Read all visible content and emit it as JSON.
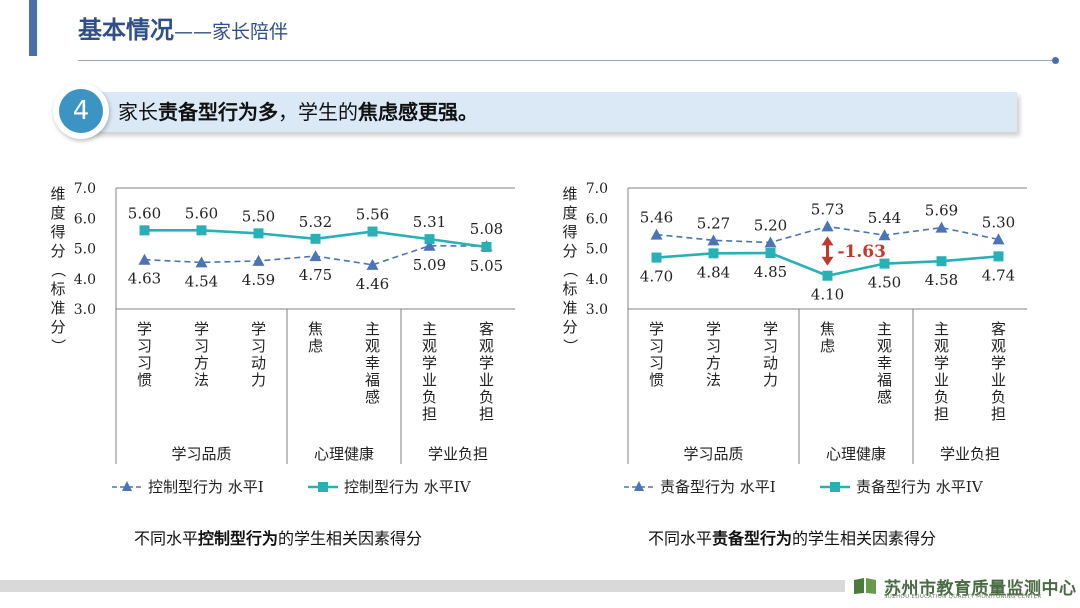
{
  "header": {
    "title": "基本情况",
    "subtitle": "——家长陪伴"
  },
  "banner": {
    "number": "4",
    "text_parts": [
      {
        "text": "家长",
        "bold": false
      },
      {
        "text": "责备型行为多",
        "bold": true
      },
      {
        "text": "，学生的",
        "bold": false
      },
      {
        "text": "焦虑感更强。",
        "bold": true
      }
    ]
  },
  "colors": {
    "series_level1": "#4a74b4",
    "series_level4": "#27b0b5",
    "gap_arrow": "#c0392b",
    "axis": "#808080",
    "title_blue": "#2f4f86"
  },
  "chart_data": [
    {
      "type": "line",
      "ylabel": "维度得分（标准分）",
      "ylim": [
        3.0,
        7.0
      ],
      "yticks": [
        "3.0",
        "4.0",
        "5.0",
        "6.0",
        "7.0"
      ],
      "categories": [
        "学习习惯",
        "学习方法",
        "学习动力",
        "焦虑",
        "主观幸福感",
        "主观学业负担",
        "客观学业负担"
      ],
      "groups": [
        {
          "label": "学习品质",
          "span": 3
        },
        {
          "label": "心理健康",
          "span": 2
        },
        {
          "label": "学业负担",
          "span": 2
        }
      ],
      "series": [
        {
          "name": "控制型行为 水平I",
          "values": [
            4.63,
            4.54,
            4.59,
            4.75,
            4.46,
            5.09,
            5.08
          ],
          "labels": [
            "4.63",
            "4.54",
            "4.59",
            "4.75",
            "4.46",
            "5.09",
            "5.08"
          ]
        },
        {
          "name": "控制型行为 水平IV",
          "values": [
            5.6,
            5.6,
            5.5,
            5.32,
            5.56,
            5.31,
            5.05
          ],
          "labels": [
            "5.60",
            "5.60",
            "5.50",
            "5.32",
            "5.56",
            "5.31",
            "5.05"
          ]
        }
      ],
      "legend": [
        "控制型行为 水平I",
        "控制型行为 水平IV"
      ],
      "caption_parts": [
        {
          "text": "不同水平",
          "bold": false
        },
        {
          "text": "控制型行为",
          "bold": true
        },
        {
          "text": "的学生相关因素得分",
          "bold": false
        }
      ]
    },
    {
      "type": "line",
      "ylabel": "维度得分（标准分）",
      "ylim": [
        3.0,
        7.0
      ],
      "yticks": [
        "3.0",
        "4.0",
        "5.0",
        "6.0",
        "7.0"
      ],
      "categories": [
        "学习习惯",
        "学习方法",
        "学习动力",
        "焦虑",
        "主观幸福感",
        "主观学业负担",
        "客观学业负担"
      ],
      "groups": [
        {
          "label": "学习品质",
          "span": 3
        },
        {
          "label": "心理健康",
          "span": 2
        },
        {
          "label": "学业负担",
          "span": 2
        }
      ],
      "series": [
        {
          "name": "责备型行为 水平I",
          "values": [
            5.46,
            5.27,
            5.2,
            5.73,
            5.44,
            5.69,
            5.3
          ],
          "labels": [
            "5.46",
            "5.27",
            "5.20",
            "5.73",
            "5.44",
            "5.69",
            "5.30"
          ]
        },
        {
          "name": "责备型行为 水平IV",
          "values": [
            4.7,
            4.84,
            4.85,
            4.1,
            4.5,
            4.58,
            4.74
          ],
          "labels": [
            "4.70",
            "4.84",
            "4.85",
            "4.10",
            "4.50",
            "4.58",
            "4.74"
          ]
        }
      ],
      "annotation": {
        "text": "-1.63",
        "category_index": 3
      },
      "legend": [
        "责备型行为 水平I",
        "责备型行为 水平IV"
      ],
      "caption_parts": [
        {
          "text": "不同水平",
          "bold": false
        },
        {
          "text": "责备型行为",
          "bold": true
        },
        {
          "text": "的学生相关因素得分",
          "bold": false
        }
      ]
    }
  ],
  "footer": {
    "org_name": "苏州市教育质量监测中心",
    "org_name_en": "SUZHOU EDUCATION QUALITY MONITORING CENTER"
  }
}
